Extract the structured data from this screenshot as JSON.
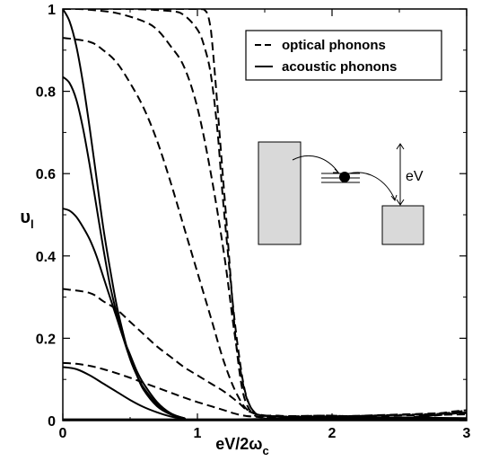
{
  "chart_data": {
    "type": "line",
    "title": "",
    "xlabel": {
      "main": "eV/2ω",
      "sub": "c"
    },
    "ylabel": {
      "main": "υ",
      "sub": "l"
    },
    "xlim": [
      0,
      3
    ],
    "ylim": [
      0,
      1
    ],
    "x_ticks": [
      "0",
      "1",
      "2",
      "3"
    ],
    "y_ticks": [
      "0",
      "0.2",
      "0.4",
      "0.6",
      "0.8",
      "1"
    ],
    "legend": {
      "placement": "top-right",
      "entries": [
        {
          "label": "optical phonons",
          "style": "dashed"
        },
        {
          "label": "acoustic phonons",
          "style": "solid"
        }
      ]
    },
    "series": [
      {
        "style": "dashed",
        "x": [
          0,
          0.2,
          0.5,
          0.8,
          0.9,
          0.95,
          1.0,
          1.05,
          1.1,
          1.2,
          1.3,
          1.4,
          1.6,
          2.0,
          2.5,
          2.9,
          3.0
        ],
        "y": [
          1.0,
          1.0,
          1.0,
          1.0,
          1.0,
          1.0,
          1.0,
          0.999,
          0.95,
          0.55,
          0.15,
          0.02,
          0.01,
          0.012,
          0.005,
          0.02,
          0.025
        ]
      },
      {
        "style": "dashed",
        "x": [
          0,
          0.2,
          0.5,
          0.8,
          0.9,
          1.0,
          1.05,
          1.1,
          1.15,
          1.2,
          1.3,
          1.4,
          1.6,
          2.0,
          2.5,
          2.9,
          3.0
        ],
        "y": [
          1.0,
          1.0,
          1.0,
          0.995,
          0.985,
          0.95,
          0.91,
          0.84,
          0.7,
          0.5,
          0.18,
          0.03,
          0.012,
          0.012,
          0.006,
          0.022,
          0.025
        ]
      },
      {
        "style": "dashed",
        "x": [
          0,
          0.1,
          0.2,
          0.4,
          0.6,
          0.7,
          0.8,
          0.9,
          1.0,
          1.1,
          1.2,
          1.3,
          1.4,
          1.6,
          2.0,
          2.5,
          3.0
        ],
        "y": [
          1.0,
          1.0,
          0.998,
          0.99,
          0.97,
          0.95,
          0.91,
          0.86,
          0.76,
          0.6,
          0.4,
          0.16,
          0.03,
          0.01,
          0.01,
          0.006,
          0.02
        ]
      },
      {
        "style": "dashed",
        "x": [
          0,
          0.2,
          0.3,
          0.4,
          0.5,
          0.6,
          0.7,
          0.8,
          0.9,
          1.0,
          1.1,
          1.2,
          1.3,
          1.4,
          1.6,
          2.0,
          3.0
        ],
        "y": [
          0.93,
          0.92,
          0.9,
          0.87,
          0.82,
          0.76,
          0.68,
          0.58,
          0.47,
          0.36,
          0.25,
          0.14,
          0.06,
          0.02,
          0.01,
          0.01,
          0.02
        ]
      },
      {
        "style": "dashed",
        "x": [
          0,
          0.2,
          0.3,
          0.4,
          0.5,
          0.6,
          0.7,
          0.8,
          0.9,
          1.0,
          1.1,
          1.2,
          1.3,
          1.4,
          1.6,
          2.0,
          3.0
        ],
        "y": [
          0.32,
          0.31,
          0.29,
          0.27,
          0.24,
          0.21,
          0.18,
          0.155,
          0.13,
          0.11,
          0.09,
          0.07,
          0.045,
          0.02,
          0.01,
          0.01,
          0.018
        ]
      },
      {
        "style": "dashed",
        "x": [
          0,
          0.1,
          0.2,
          0.3,
          0.4,
          0.5,
          0.6,
          0.7,
          0.8,
          0.9,
          1.0,
          1.1,
          1.2,
          1.3,
          1.4,
          1.6,
          2.0,
          3.0
        ],
        "y": [
          0.14,
          0.138,
          0.133,
          0.125,
          0.115,
          0.104,
          0.092,
          0.08,
          0.068,
          0.056,
          0.045,
          0.035,
          0.025,
          0.015,
          0.01,
          0.008,
          0.01,
          0.015
        ]
      },
      {
        "style": "solid",
        "x": [
          0,
          0.05,
          0.1,
          0.15,
          0.2,
          0.25,
          0.3,
          0.35,
          0.4,
          0.45,
          0.5,
          0.55,
          0.6,
          0.7,
          0.8,
          0.9,
          1.0,
          2.0,
          3.0
        ],
        "y": [
          1.0,
          0.97,
          0.91,
          0.82,
          0.71,
          0.59,
          0.47,
          0.37,
          0.28,
          0.21,
          0.15,
          0.11,
          0.075,
          0.035,
          0.015,
          0.005,
          0.0,
          0.008,
          0.006
        ]
      },
      {
        "style": "solid",
        "x": [
          0,
          0.05,
          0.1,
          0.15,
          0.2,
          0.25,
          0.3,
          0.35,
          0.4,
          0.45,
          0.5,
          0.55,
          0.6,
          0.7,
          0.8,
          0.9,
          1.0,
          2.0,
          3.0
        ],
        "y": [
          0.835,
          0.82,
          0.78,
          0.71,
          0.62,
          0.52,
          0.42,
          0.33,
          0.26,
          0.2,
          0.15,
          0.11,
          0.08,
          0.04,
          0.017,
          0.006,
          0.0,
          0.006,
          0.005
        ]
      },
      {
        "style": "solid",
        "x": [
          0,
          0.05,
          0.1,
          0.15,
          0.2,
          0.25,
          0.3,
          0.35,
          0.4,
          0.45,
          0.5,
          0.55,
          0.6,
          0.7,
          0.8,
          0.9,
          1.0,
          2.0,
          3.0
        ],
        "y": [
          0.515,
          0.51,
          0.495,
          0.47,
          0.44,
          0.4,
          0.35,
          0.3,
          0.25,
          0.2,
          0.16,
          0.12,
          0.09,
          0.045,
          0.018,
          0.006,
          0.0,
          0.005,
          0.004
        ]
      },
      {
        "style": "solid",
        "x": [
          0,
          0.1,
          0.2,
          0.3,
          0.4,
          0.5,
          0.6,
          0.7,
          0.8,
          0.9,
          1.0,
          2.0,
          3.0
        ],
        "y": [
          0.13,
          0.125,
          0.11,
          0.09,
          0.07,
          0.05,
          0.033,
          0.02,
          0.01,
          0.004,
          0.0,
          0.004,
          0.003
        ]
      },
      {
        "style": "solid",
        "x": [
          0,
          1.0,
          2.0,
          3.0
        ],
        "y": [
          0.003,
          0.003,
          0.003,
          0.003
        ]
      }
    ]
  },
  "inset": {
    "label": "eV"
  }
}
